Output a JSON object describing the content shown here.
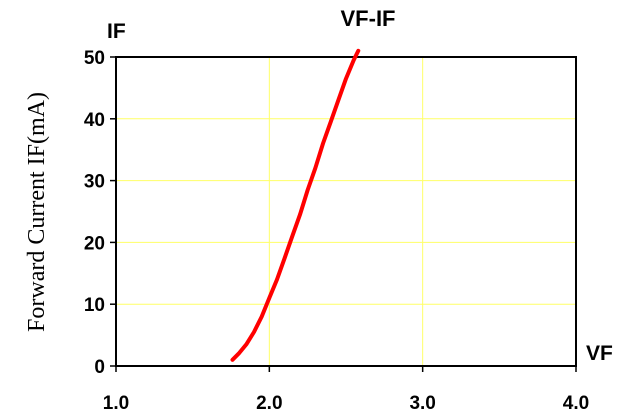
{
  "chart_data": {
    "type": "line",
    "title": "VF-IF",
    "ylabel": "Forward Current IF(mA)",
    "y_axis_name": "IF",
    "x_axis_name": "VF",
    "xlim": [
      1.0,
      4.0
    ],
    "ylim": [
      0,
      50
    ],
    "x_ticks": [
      "1.0",
      "2.0",
      "3.0",
      "4.0"
    ],
    "y_ticks": [
      "0",
      "10",
      "20",
      "30",
      "40",
      "50"
    ],
    "grid": true,
    "colors": {
      "background": "#ffffff",
      "grid": "#ffff66",
      "series": "#ff0000",
      "axes": "#000000"
    },
    "series": [
      {
        "x": [
          1.76,
          1.8,
          1.85,
          1.9,
          1.95,
          2.0,
          2.05,
          2.1,
          2.15,
          2.2,
          2.25,
          2.3,
          2.35,
          2.4,
          2.45,
          2.5,
          2.55,
          2.58
        ],
        "y": [
          1,
          2,
          3.5,
          5.5,
          8,
          11,
          14,
          17.5,
          21,
          24.5,
          28.5,
          32,
          36,
          39.5,
          43,
          46.5,
          49.5,
          51
        ]
      }
    ]
  }
}
